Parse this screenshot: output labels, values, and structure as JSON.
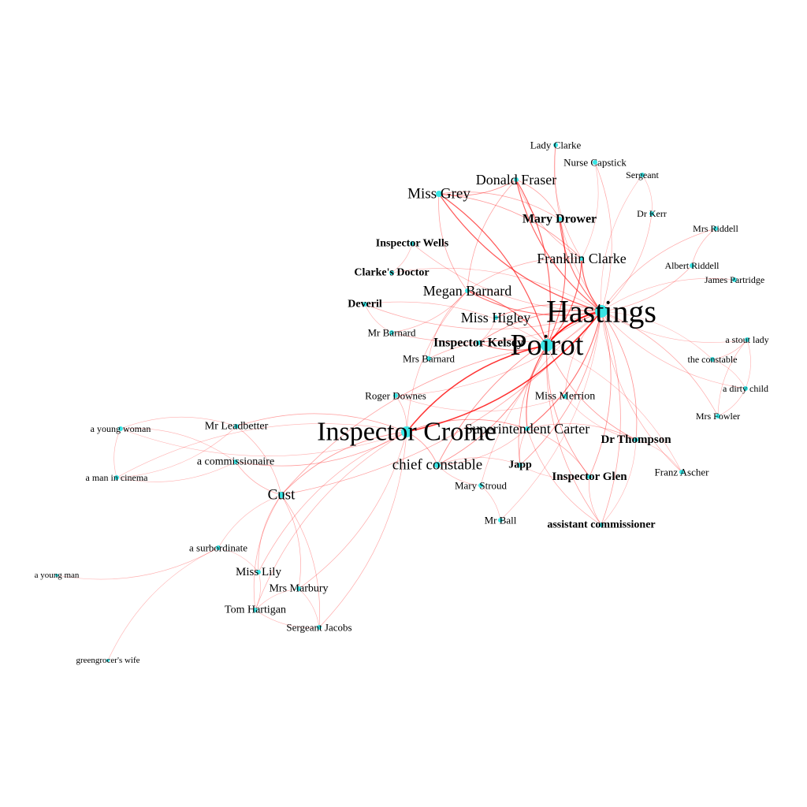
{
  "colors": {
    "background": "#ffffff",
    "node": "#39e6e6",
    "edge": "#ff0000",
    "label": "#000000"
  },
  "nodes": [
    {
      "id": "hastings",
      "label": "Hastings"
    },
    {
      "id": "poirot",
      "label": "Poirot"
    },
    {
      "id": "inspector-crome",
      "label": "Inspector Crome"
    },
    {
      "id": "superintendent-carter",
      "label": "Superintendent Carter"
    },
    {
      "id": "chief-constable",
      "label": "chief constable"
    },
    {
      "id": "cust",
      "label": "Cust"
    },
    {
      "id": "miss-grey",
      "label": "Miss Grey"
    },
    {
      "id": "donald-fraser",
      "label": "Donald Fraser"
    },
    {
      "id": "megan-barnard",
      "label": "Megan Barnard"
    },
    {
      "id": "franklin-clarke",
      "label": "Franklin Clarke"
    },
    {
      "id": "miss-higley",
      "label": "Miss Higley"
    },
    {
      "id": "mary-drower",
      "label": "Mary Drower"
    },
    {
      "id": "inspector-kelsey",
      "label": "Inspector Kelsey"
    },
    {
      "id": "dr-thompson",
      "label": "Dr Thompson"
    },
    {
      "id": "inspector-glen",
      "label": "Inspector Glen"
    },
    {
      "id": "assistant-commissioner",
      "label": "assistant commissioner"
    },
    {
      "id": "inspector-wells",
      "label": "Inspector Wells"
    },
    {
      "id": "clarkes-doctor",
      "label": "Clarke's Doctor"
    },
    {
      "id": "deveril",
      "label": "Deveril"
    },
    {
      "id": "japp",
      "label": "Japp"
    },
    {
      "id": "miss-lily",
      "label": "Miss Lily"
    },
    {
      "id": "mrs-marbury",
      "label": "Mrs Marbury"
    },
    {
      "id": "tom-hartigan",
      "label": "Tom Hartigan"
    },
    {
      "id": "mr-leadbetter",
      "label": "Mr Leadbetter"
    },
    {
      "id": "a-commissionaire",
      "label": "a commissionaire"
    },
    {
      "id": "miss-merrion",
      "label": "Miss Merrion"
    },
    {
      "id": "roger-downes",
      "label": "Roger Downes"
    },
    {
      "id": "mrs-barnard",
      "label": "Mrs Barnard"
    },
    {
      "id": "mr-barnard",
      "label": "Mr Barnard"
    },
    {
      "id": "mary-stroud",
      "label": "Mary Stroud"
    },
    {
      "id": "mr-ball",
      "label": "Mr Ball"
    },
    {
      "id": "sergeant-jacobs",
      "label": "Sergeant Jacobs"
    },
    {
      "id": "a-surbordinate",
      "label": "a surbordinate"
    },
    {
      "id": "a-young-woman",
      "label": "a young woman"
    },
    {
      "id": "a-man-in-cinema",
      "label": "a man in cinema"
    },
    {
      "id": "a-young-man",
      "label": "a young man"
    },
    {
      "id": "greengrocers-wife",
      "label": "greengrocer's wife"
    },
    {
      "id": "lady-clarke",
      "label": "Lady Clarke"
    },
    {
      "id": "nurse-capstick",
      "label": "Nurse Capstick"
    },
    {
      "id": "sergeant",
      "label": "Sergeant"
    },
    {
      "id": "dr-kerr",
      "label": "Dr Kerr"
    },
    {
      "id": "mrs-riddell",
      "label": "Mrs Riddell"
    },
    {
      "id": "albert-riddell",
      "label": "Albert Riddell"
    },
    {
      "id": "james-partridge",
      "label": "James Partridge"
    },
    {
      "id": "a-stout-lady",
      "label": "a stout lady"
    },
    {
      "id": "the-constable",
      "label": "the constable"
    },
    {
      "id": "a-dirty-child",
      "label": "a dirty child"
    },
    {
      "id": "mrs-fowler",
      "label": "Mrs Fowler"
    },
    {
      "id": "franz-ascher",
      "label": "Franz Ascher"
    }
  ],
  "edges": [
    [
      "hastings",
      "poirot",
      1.0
    ],
    [
      "hastings",
      "inspector-crome",
      0.8
    ],
    [
      "poirot",
      "inspector-crome",
      0.8
    ],
    [
      "hastings",
      "miss-grey",
      0.6
    ],
    [
      "poirot",
      "miss-grey",
      0.6
    ],
    [
      "hastings",
      "donald-fraser",
      0.55
    ],
    [
      "poirot",
      "donald-fraser",
      0.55
    ],
    [
      "hastings",
      "megan-barnard",
      0.5
    ],
    [
      "poirot",
      "megan-barnard",
      0.5
    ],
    [
      "hastings",
      "franklin-clarke",
      0.55
    ],
    [
      "poirot",
      "franklin-clarke",
      0.55
    ],
    [
      "hastings",
      "mary-drower",
      0.5
    ],
    [
      "poirot",
      "mary-drower",
      0.5
    ],
    [
      "hastings",
      "superintendent-carter",
      0.5
    ],
    [
      "poirot",
      "superintendent-carter",
      0.5
    ],
    [
      "inspector-crome",
      "superintendent-carter",
      0.35
    ],
    [
      "hastings",
      "chief-constable",
      0.35
    ],
    [
      "poirot",
      "chief-constable",
      0.35
    ],
    [
      "hastings",
      "miss-higley",
      0.35
    ],
    [
      "poirot",
      "inspector-kelsey",
      0.4
    ],
    [
      "hastings",
      "inspector-kelsey",
      0.35
    ],
    [
      "hastings",
      "dr-thompson",
      0.3
    ],
    [
      "poirot",
      "dr-thompson",
      0.3
    ],
    [
      "hastings",
      "inspector-glen",
      0.3
    ],
    [
      "poirot",
      "inspector-glen",
      0.3
    ],
    [
      "hastings",
      "assistant-commissioner",
      0.25
    ],
    [
      "poirot",
      "assistant-commissioner",
      0.25
    ],
    [
      "hastings",
      "japp",
      0.3
    ],
    [
      "poirot",
      "japp",
      0.3
    ],
    [
      "hastings",
      "cust",
      0.25
    ],
    [
      "poirot",
      "cust",
      0.25
    ],
    [
      "hastings",
      "inspector-wells",
      0.2
    ],
    [
      "hastings",
      "clarkes-doctor",
      0.2
    ],
    [
      "hastings",
      "deveril",
      0.2
    ],
    [
      "poirot",
      "deveril",
      0.2
    ],
    [
      "hastings",
      "mr-barnard",
      0.2
    ],
    [
      "poirot",
      "mrs-barnard",
      0.2
    ],
    [
      "hastings",
      "roger-downes",
      0.2
    ],
    [
      "hastings",
      "miss-merrion",
      0.2
    ],
    [
      "hastings",
      "lady-clarke",
      0.2
    ],
    [
      "hastings",
      "nurse-capstick",
      0.2
    ],
    [
      "hastings",
      "sergeant",
      0.15
    ],
    [
      "hastings",
      "dr-kerr",
      0.2
    ],
    [
      "hastings",
      "mrs-riddell",
      0.2
    ],
    [
      "hastings",
      "albert-riddell",
      0.2
    ],
    [
      "hastings",
      "james-partridge",
      0.15
    ],
    [
      "hastings",
      "a-stout-lady",
      0.15
    ],
    [
      "hastings",
      "the-constable",
      0.15
    ],
    [
      "hastings",
      "a-dirty-child",
      0.15
    ],
    [
      "hastings",
      "mrs-fowler",
      0.2
    ],
    [
      "hastings",
      "franz-ascher",
      0.2
    ],
    [
      "poirot",
      "franz-ascher",
      0.15
    ],
    [
      "hastings",
      "mary-stroud",
      0.15
    ],
    [
      "hastings",
      "mr-ball",
      0.15
    ],
    [
      "miss-grey",
      "donald-fraser",
      0.35
    ],
    [
      "miss-grey",
      "franklin-clarke",
      0.3
    ],
    [
      "miss-grey",
      "megan-barnard",
      0.25
    ],
    [
      "miss-grey",
      "mary-drower",
      0.25
    ],
    [
      "donald-fraser",
      "megan-barnard",
      0.25
    ],
    [
      "donald-fraser",
      "mary-drower",
      0.25
    ],
    [
      "franklin-clarke",
      "megan-barnard",
      0.2
    ],
    [
      "franklin-clarke",
      "lady-clarke",
      0.2
    ],
    [
      "franklin-clarke",
      "nurse-capstick",
      0.15
    ],
    [
      "franklin-clarke",
      "donald-fraser",
      0.2
    ],
    [
      "megan-barnard",
      "mrs-barnard",
      0.2
    ],
    [
      "megan-barnard",
      "mr-barnard",
      0.2
    ],
    [
      "mrs-riddell",
      "albert-riddell",
      0.2
    ],
    [
      "a-stout-lady",
      "a-dirty-child",
      0.15
    ],
    [
      "the-constable",
      "a-stout-lady",
      0.15
    ],
    [
      "the-constable",
      "a-dirty-child",
      0.15
    ],
    [
      "mrs-fowler",
      "a-dirty-child",
      0.15
    ],
    [
      "mrs-fowler",
      "a-stout-lady",
      0.15
    ],
    [
      "inspector-crome",
      "cust",
      0.3
    ],
    [
      "inspector-crome",
      "chief-constable",
      0.3
    ],
    [
      "inspector-crome",
      "mr-leadbetter",
      0.25
    ],
    [
      "inspector-crome",
      "a-commissionaire",
      0.25
    ],
    [
      "inspector-crome",
      "miss-lily",
      0.2
    ],
    [
      "inspector-crome",
      "mrs-marbury",
      0.2
    ],
    [
      "inspector-crome",
      "tom-hartigan",
      0.2
    ],
    [
      "inspector-crome",
      "sergeant-jacobs",
      0.2
    ],
    [
      "inspector-crome",
      "roger-downes",
      0.2
    ],
    [
      "inspector-crome",
      "a-young-woman",
      0.15
    ],
    [
      "inspector-crome",
      "a-man-in-cinema",
      0.15
    ],
    [
      "inspector-crome",
      "megan-barnard",
      0.2
    ],
    [
      "cust",
      "mr-leadbetter",
      0.2
    ],
    [
      "cust",
      "a-commissionaire",
      0.2
    ],
    [
      "cust",
      "miss-lily",
      0.2
    ],
    [
      "cust",
      "mrs-marbury",
      0.2
    ],
    [
      "cust",
      "tom-hartigan",
      0.2
    ],
    [
      "cust",
      "sergeant-jacobs",
      0.2
    ],
    [
      "cust",
      "a-surbordinate",
      0.15
    ],
    [
      "a-surbordinate",
      "a-young-man",
      0.15
    ],
    [
      "a-surbordinate",
      "greengrocers-wife",
      0.15
    ],
    [
      "a-surbordinate",
      "miss-lily",
      0.15
    ],
    [
      "mr-leadbetter",
      "a-young-woman",
      0.15
    ],
    [
      "mr-leadbetter",
      "a-man-in-cinema",
      0.15
    ],
    [
      "a-commissionaire",
      "a-young-woman",
      0.15
    ],
    [
      "a-commissionaire",
      "a-man-in-cinema",
      0.15
    ],
    [
      "a-young-woman",
      "a-man-in-cinema",
      0.15
    ],
    [
      "miss-lily",
      "tom-hartigan",
      0.15
    ],
    [
      "mrs-marbury",
      "tom-hartigan",
      0.15
    ],
    [
      "mrs-marbury",
      "sergeant-jacobs",
      0.15
    ],
    [
      "tom-hartigan",
      "sergeant-jacobs",
      0.15
    ],
    [
      "superintendent-carter",
      "inspector-glen",
      0.2
    ],
    [
      "superintendent-carter",
      "assistant-commissioner",
      0.2
    ],
    [
      "superintendent-carter",
      "dr-thompson",
      0.2
    ],
    [
      "superintendent-carter",
      "japp",
      0.2
    ],
    [
      "superintendent-carter",
      "chief-constable",
      0.2
    ],
    [
      "inspector-glen",
      "assistant-commissioner",
      0.2
    ],
    [
      "dr-thompson",
      "assistant-commissioner",
      0.15
    ],
    [
      "japp",
      "inspector-glen",
      0.15
    ],
    [
      "mary-stroud",
      "mr-ball",
      0.15
    ],
    [
      "chief-constable",
      "mary-stroud",
      0.15
    ],
    [
      "chief-constable",
      "japp",
      0.15
    ],
    [
      "inspector-kelsey",
      "miss-higley",
      0.15
    ],
    [
      "inspector-wells",
      "clarkes-doctor",
      0.15
    ],
    [
      "deveril",
      "mr-barnard",
      0.15
    ],
    [
      "miss-merrion",
      "roger-downes",
      0.15
    ],
    [
      "dr-kerr",
      "sergeant",
      0.15
    ],
    [
      "dr-thompson",
      "franz-ascher",
      0.15
    ],
    [
      "miss-merrion",
      "dr-thompson",
      0.15
    ]
  ]
}
